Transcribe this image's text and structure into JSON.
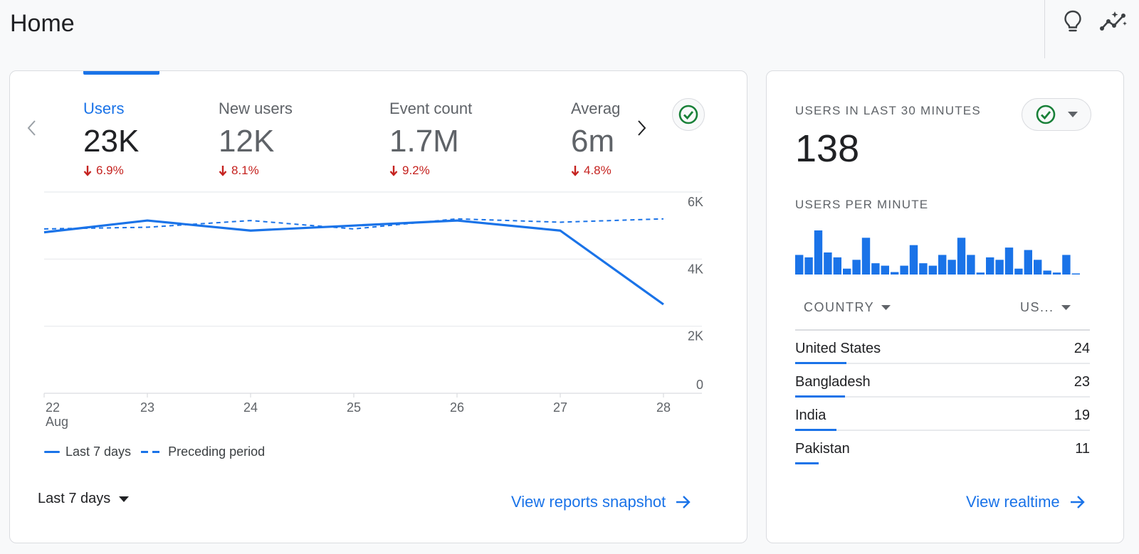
{
  "header": {
    "title": "Home",
    "icons": [
      "lightbulb-icon",
      "insights-icon"
    ]
  },
  "main_card": {
    "metrics": [
      {
        "label": "Users",
        "value": "23K",
        "delta": "6.9%",
        "active": true
      },
      {
        "label": "New users",
        "value": "12K",
        "delta": "8.1%",
        "active": false
      },
      {
        "label": "Event count",
        "value": "1.7M",
        "delta": "9.2%",
        "active": false
      },
      {
        "label": "Averag",
        "value": "6m",
        "delta": "4.8%",
        "active": false
      }
    ],
    "legend": {
      "current": "Last 7 days",
      "previous": "Preceding period"
    },
    "date_range": "Last 7 days",
    "link": "View reports snapshot"
  },
  "chart_data": {
    "type": "line",
    "x": [
      "22",
      "23",
      "24",
      "25",
      "26",
      "27",
      "28"
    ],
    "x_sub": "Aug",
    "y_ticks": [
      "0",
      "2K",
      "4K",
      "6K"
    ],
    "ylim": [
      0,
      6000
    ],
    "series": [
      {
        "name": "Last 7 days",
        "style": "solid",
        "values": [
          4800,
          5150,
          4850,
          5000,
          5150,
          4850,
          2650
        ]
      },
      {
        "name": "Preceding period",
        "style": "dashed",
        "values": [
          4900,
          4950,
          5150,
          4900,
          5200,
          5100,
          5200
        ]
      }
    ],
    "color": "#1a73e8"
  },
  "realtime": {
    "heading": "USERS IN LAST 30 MINUTES",
    "value": "138",
    "per_minute_heading": "USERS PER MINUTE",
    "per_minute": [
      4,
      3.5,
      9,
      4.5,
      3.5,
      1.2,
      3,
      7.5,
      2.3,
      1.8,
      0.5,
      1.8,
      6,
      2.3,
      1.8,
      4,
      3,
      7.5,
      4,
      0.4,
      3.5,
      3,
      5.5,
      1.2,
      5,
      3,
      0.8,
      0.4,
      4,
      0.2
    ],
    "col_country": "COUNTRY",
    "col_users": "US...",
    "countries": [
      {
        "name": "United States",
        "count": "24",
        "share": 0.175
      },
      {
        "name": "Bangladesh",
        "count": "23",
        "share": 0.168
      },
      {
        "name": "India",
        "count": "19",
        "share": 0.139
      },
      {
        "name": "Pakistan",
        "count": "11",
        "share": 0.08
      }
    ],
    "link": "View realtime"
  },
  "colors": {
    "accent": "#1a73e8",
    "negative": "#c5221f",
    "ok": "#188038"
  }
}
